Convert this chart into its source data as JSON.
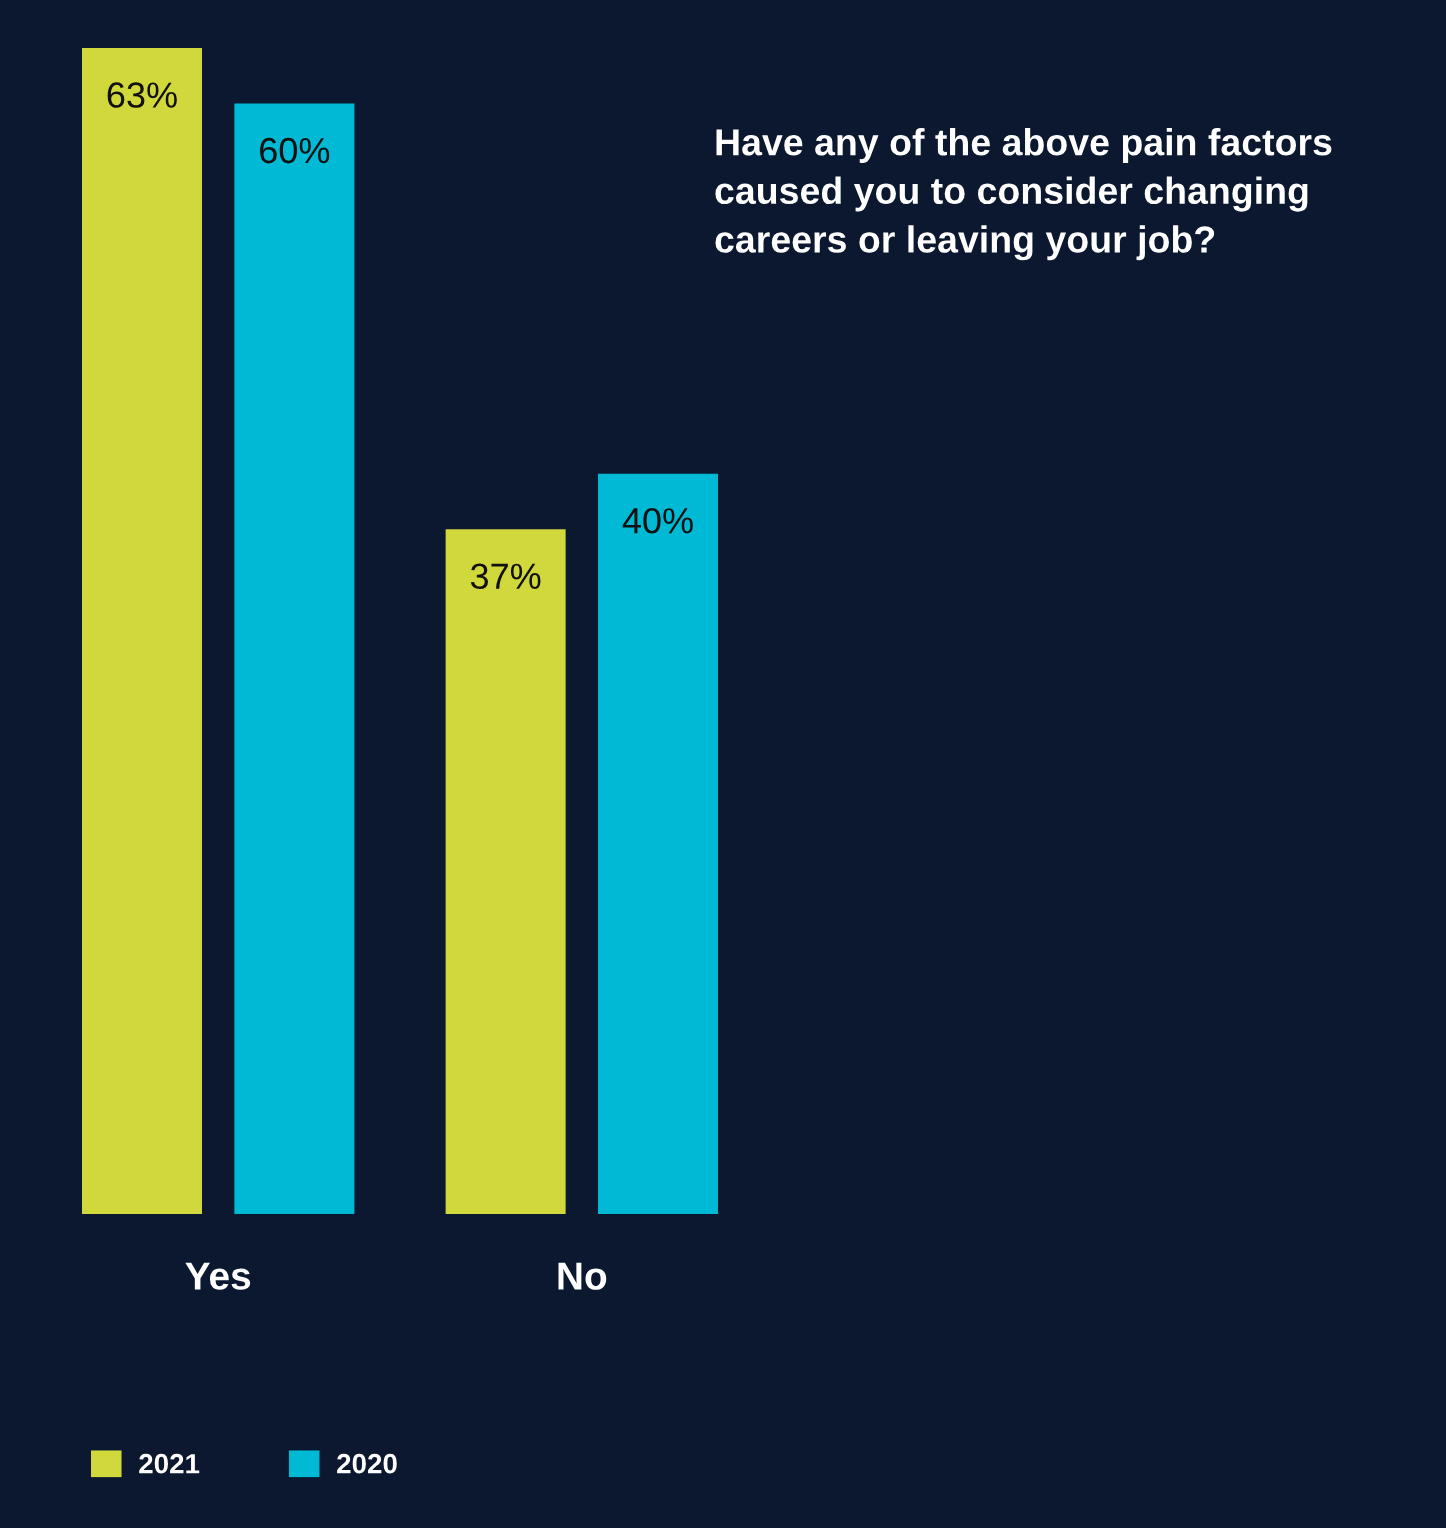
{
  "chart_data": {
    "type": "bar",
    "title": "Have any of the above pain factors caused you to consider changing careers or leaving your job?",
    "categories": [
      "Yes",
      "No"
    ],
    "series": [
      {
        "name": "2021",
        "color": "#d1d83b",
        "values": [
          63,
          37
        ],
        "value_labels": [
          "63%",
          "37%"
        ]
      },
      {
        "name": "2020",
        "color": "#00bad5",
        "values": [
          60,
          40
        ],
        "value_labels": [
          "60%",
          "40%"
        ]
      }
    ],
    "tick_labels": "x",
    "legend": "bottom left"
  }
}
